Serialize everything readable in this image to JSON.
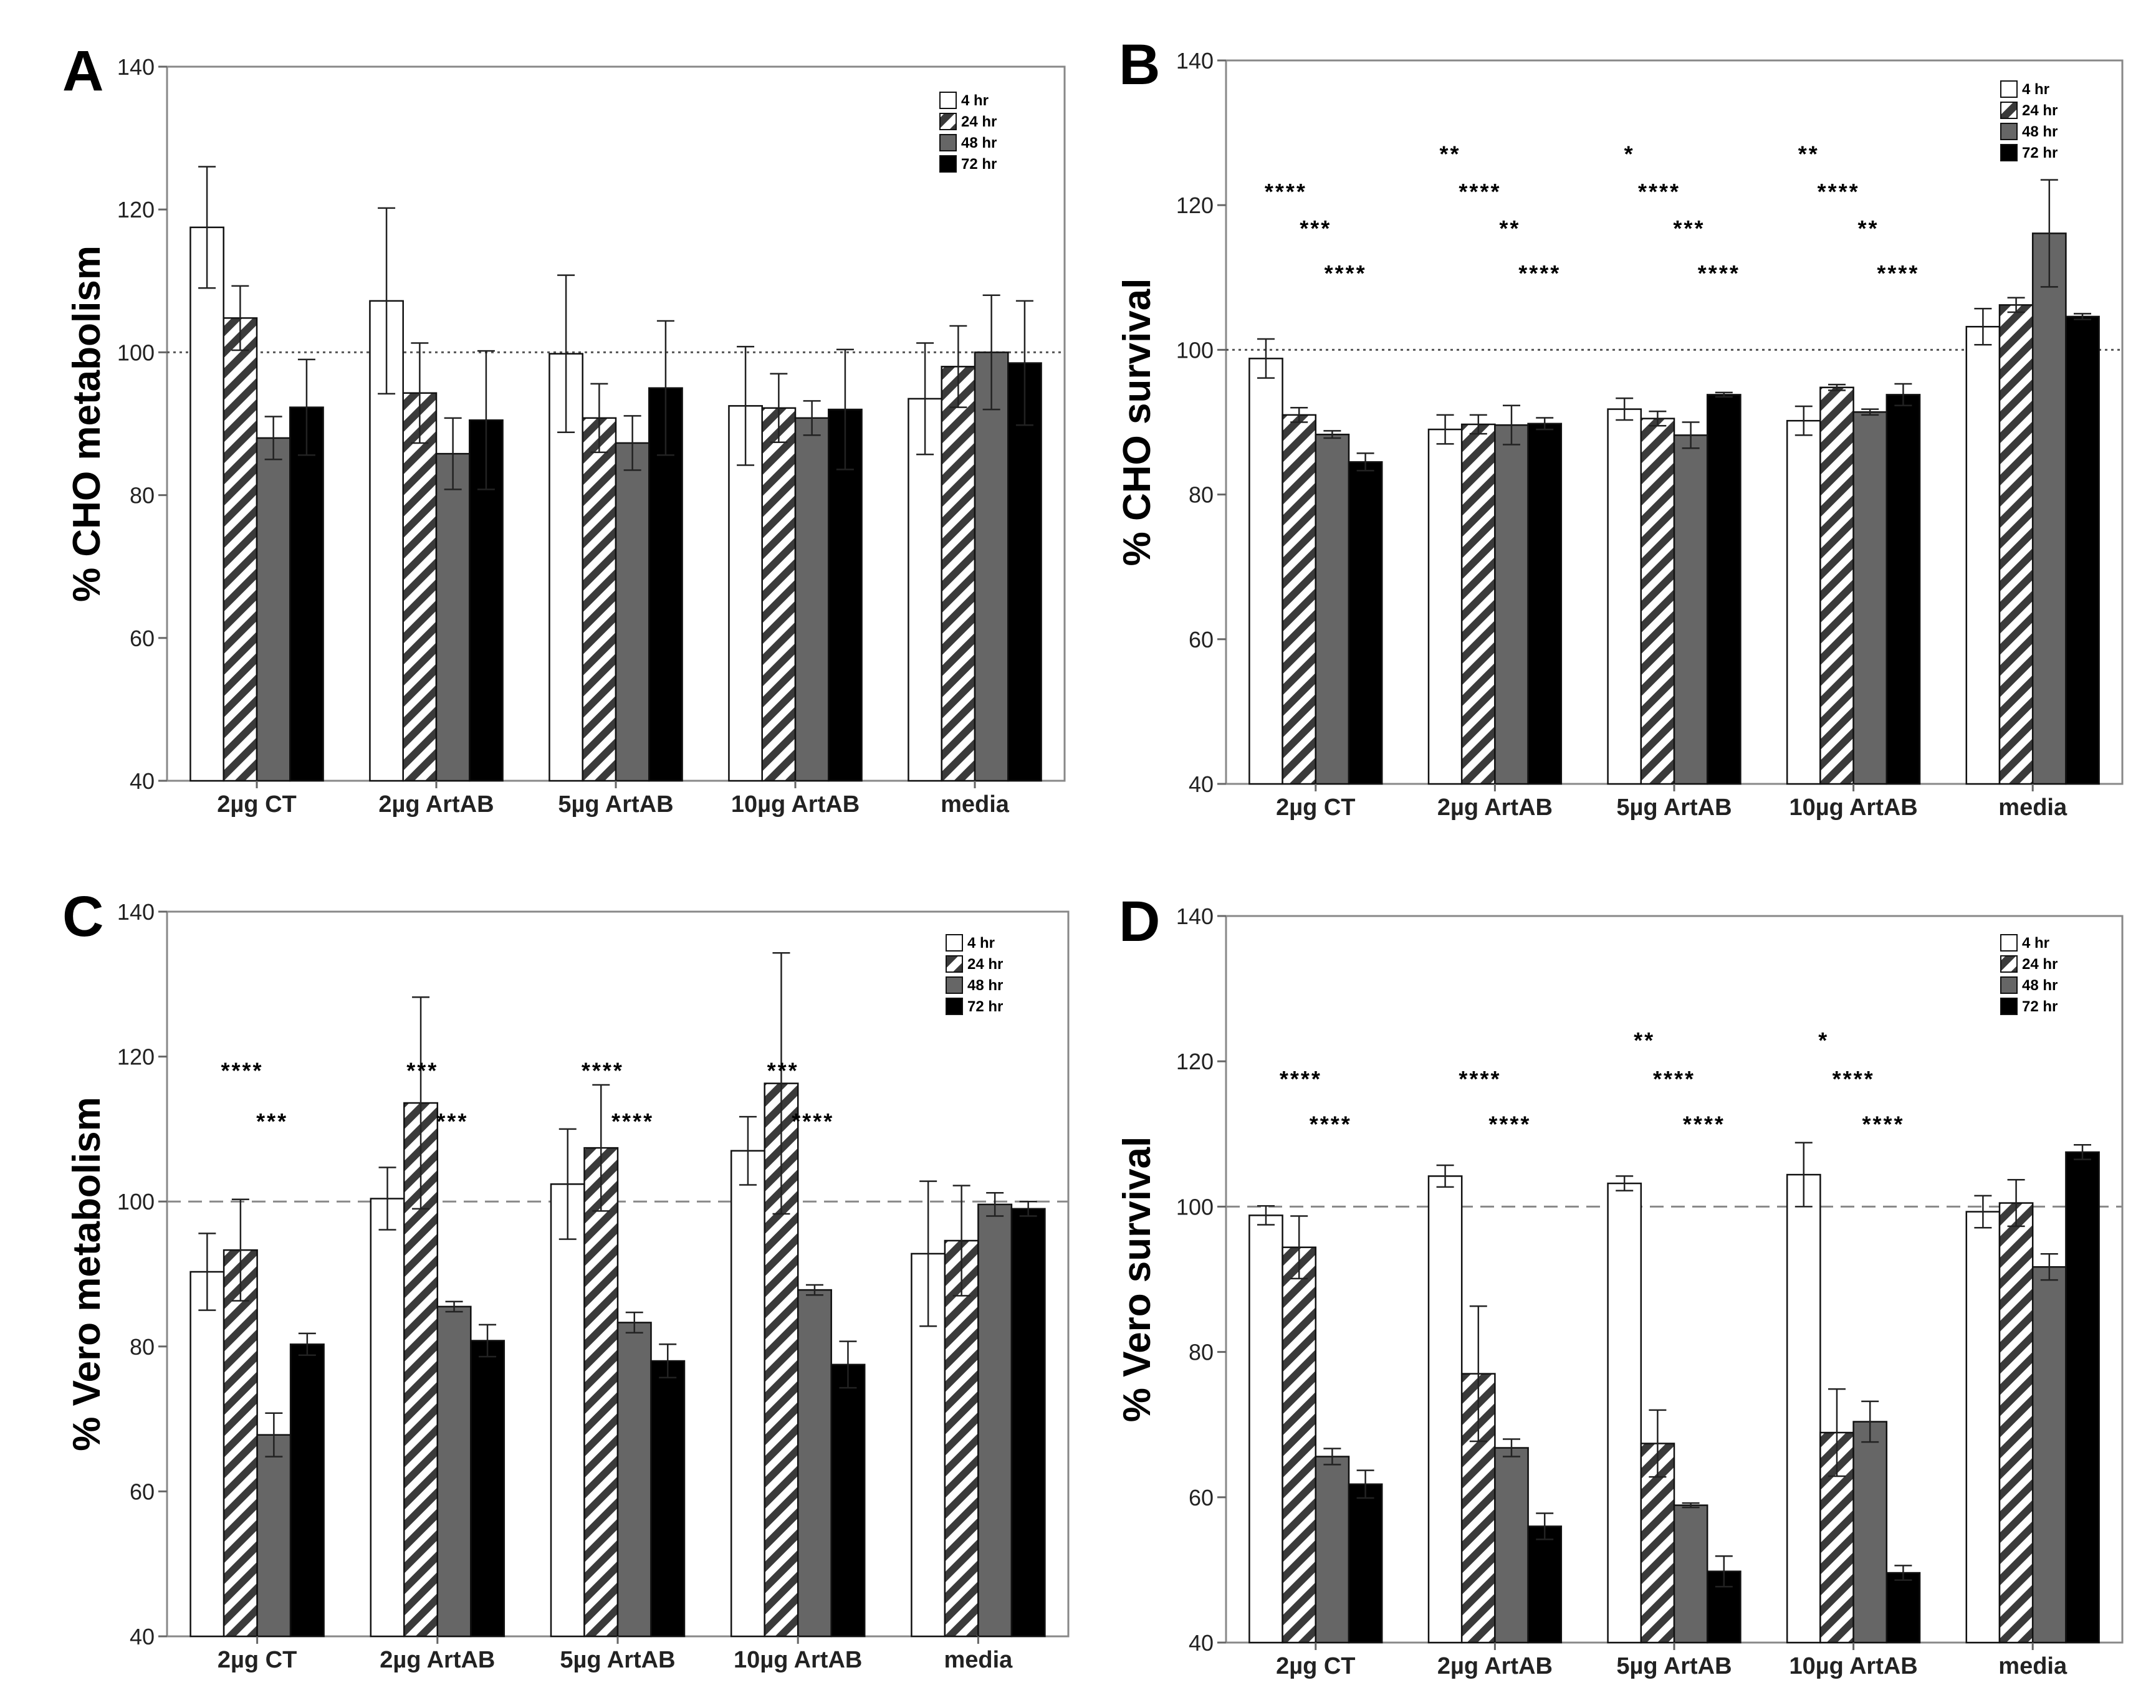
{
  "legend": [
    "4 hr",
    "24 hr",
    "48 hr",
    "72 hr"
  ],
  "colors": {
    "4 hr": "#ffffff",
    "24 hr": "hatch",
    "48 hr": "#666666",
    "72 hr": "#000000"
  },
  "chart_data": [
    {
      "panel": "A",
      "type": "bar",
      "ylabel": "% CHO metabolism",
      "ylim": [
        40,
        140
      ],
      "yticks": [
        40,
        60,
        80,
        100,
        120,
        140
      ],
      "reference_line": {
        "y": 100,
        "style": "dotted"
      },
      "categories": [
        "2µg CT",
        "2µg ArtAB",
        "5µg ArtAB",
        "10µg ArtAB",
        "media"
      ],
      "series": [
        {
          "name": "4 hr",
          "values": [
            117.5,
            107.2,
            99.8,
            92.5,
            93.5
          ],
          "errors": [
            8.5,
            13,
            11,
            8.3,
            7.8
          ]
        },
        {
          "name": "24 hr",
          "values": [
            104.8,
            94.3,
            90.8,
            92.2,
            98
          ],
          "errors": [
            4.5,
            7,
            4.8,
            4.8,
            5.7
          ]
        },
        {
          "name": "48 hr",
          "values": [
            88,
            85.8,
            87.3,
            90.8,
            100
          ],
          "errors": [
            3,
            5,
            3.8,
            2.4,
            8
          ]
        },
        {
          "name": "72 hr",
          "values": [
            92.3,
            90.5,
            95,
            92,
            98.5
          ],
          "errors": [
            6.7,
            9.7,
            9.4,
            8.4,
            8.7
          ]
        }
      ],
      "annotations": []
    },
    {
      "panel": "B",
      "type": "bar",
      "ylabel": "% CHO survival",
      "ylim": [
        40,
        140
      ],
      "yticks": [
        40,
        60,
        80,
        100,
        120,
        140
      ],
      "reference_line": {
        "y": 100,
        "style": "dotted"
      },
      "categories": [
        "2µg CT",
        "2µg ArtAB",
        "5µg ArtAB",
        "10µg ArtAB",
        "media"
      ],
      "series": [
        {
          "name": "4 hr",
          "values": [
            98.8,
            89,
            91.8,
            90.2,
            103.2
          ],
          "errors": [
            2.7,
            2,
            1.5,
            2,
            2.5
          ]
        },
        {
          "name": "24 hr",
          "values": [
            91,
            89.7,
            90.5,
            94.8,
            106.2
          ],
          "errors": [
            1,
            1.3,
            1,
            0.4,
            1
          ]
        },
        {
          "name": "48 hr",
          "values": [
            88.3,
            89.6,
            88.2,
            91.4,
            116.1
          ],
          "errors": [
            0.5,
            2.7,
            1.8,
            0.4,
            7.4
          ]
        },
        {
          "name": "72 hr",
          "values": [
            84.5,
            89.8,
            93.8,
            93.8,
            104.6
          ],
          "errors": [
            1.2,
            0.8,
            0.3,
            1.5,
            0.4
          ]
        }
      ],
      "annotations": [
        {
          "text": "****",
          "cat": 0,
          "y": 120.8
        },
        {
          "text": "***",
          "cat": 0,
          "y": 115.7
        },
        {
          "text": "****",
          "cat": 0,
          "y": 109.5
        },
        {
          "text": "**",
          "cat": 1,
          "y": 126
        },
        {
          "text": "****",
          "cat": 1,
          "y": 120.8
        },
        {
          "text": "**",
          "cat": 1,
          "y": 115.7
        },
        {
          "text": "****",
          "cat": 1,
          "y": 109.5
        },
        {
          "text": "*",
          "cat": 2,
          "y": 126
        },
        {
          "text": "****",
          "cat": 2,
          "y": 120.8
        },
        {
          "text": "***",
          "cat": 2,
          "y": 115.7
        },
        {
          "text": "****",
          "cat": 2,
          "y": 109.5
        },
        {
          "text": "**",
          "cat": 3,
          "y": 126
        },
        {
          "text": "****",
          "cat": 3,
          "y": 120.8
        },
        {
          "text": "**",
          "cat": 3,
          "y": 115.7
        },
        {
          "text": "****",
          "cat": 3,
          "y": 109.5
        }
      ]
    },
    {
      "panel": "C",
      "type": "bar",
      "ylabel": "% Vero metabolism",
      "ylim": [
        40,
        140
      ],
      "yticks": [
        40,
        60,
        80,
        100,
        120,
        140
      ],
      "reference_line": {
        "y": 100,
        "style": "dashed"
      },
      "categories": [
        "2µg CT",
        "2µg ArtAB",
        "5µg ArtAB",
        "10µg ArtAB",
        "media"
      ],
      "series": [
        {
          "name": "4 hr",
          "values": [
            90.3,
            100.4,
            102.4,
            107,
            92.8
          ],
          "errors": [
            5.3,
            4.3,
            7.6,
            4.7,
            10
          ]
        },
        {
          "name": "24 hr",
          "values": [
            93.3,
            113.6,
            107.4,
            116.3,
            94.6
          ],
          "errors": [
            7,
            14.6,
            8.7,
            18,
            7.6
          ]
        },
        {
          "name": "48 hr",
          "values": [
            67.8,
            85.5,
            83.3,
            87.8,
            99.6
          ],
          "errors": [
            3,
            0.7,
            1.4,
            0.7,
            1.6
          ]
        },
        {
          "name": "72 hr",
          "values": [
            80.3,
            80.8,
            78,
            77.5,
            99
          ],
          "errors": [
            1.5,
            2.2,
            2.3,
            3.2,
            1
          ]
        }
      ],
      "annotations": [
        {
          "text": "****",
          "cat": 0,
          "y": 117
        },
        {
          "text": "***",
          "cat": 0,
          "y": 110
        },
        {
          "text": "***",
          "cat": 1,
          "y": 117
        },
        {
          "text": "***",
          "cat": 1,
          "y": 110
        },
        {
          "text": "****",
          "cat": 2,
          "y": 117
        },
        {
          "text": "****",
          "cat": 2,
          "y": 110
        },
        {
          "text": "***",
          "cat": 3,
          "y": 117
        },
        {
          "text": "****",
          "cat": 3,
          "y": 110
        }
      ]
    },
    {
      "panel": "D",
      "type": "bar",
      "ylabel": "% Vero survival",
      "ylim": [
        40,
        140
      ],
      "yticks": [
        40,
        60,
        80,
        100,
        120,
        140
      ],
      "reference_line": {
        "y": 100,
        "style": "dashed"
      },
      "categories": [
        "2µg CT",
        "2µg ArtAB",
        "5µg ArtAB",
        "10µg ArtAB",
        "media"
      ],
      "series": [
        {
          "name": "4 hr",
          "values": [
            98.8,
            104.2,
            103.2,
            104.4,
            99.3
          ],
          "errors": [
            1.3,
            1.5,
            1,
            4.4,
            2.2
          ]
        },
        {
          "name": "24 hr",
          "values": [
            94.4,
            77,
            67.4,
            68.9,
            100.5
          ],
          "errors": [
            4.3,
            9.3,
            4.6,
            6,
            3.2
          ]
        },
        {
          "name": "48 hr",
          "values": [
            65.6,
            66.8,
            58.9,
            70.4,
            91.7
          ],
          "errors": [
            1.1,
            1.2,
            0.3,
            2.8,
            1.8
          ]
        },
        {
          "name": "72 hr",
          "values": [
            61.8,
            56,
            49.8,
            49.6,
            107.5
          ],
          "errors": [
            1.9,
            1.8,
            2.1,
            1,
            1
          ]
        }
      ],
      "annotations": [
        {
          "text": "****",
          "cat": 0,
          "y": 116.5
        },
        {
          "text": "****",
          "cat": 0,
          "y": 110.3
        },
        {
          "text": "****",
          "cat": 1,
          "y": 116.5
        },
        {
          "text": "****",
          "cat": 1,
          "y": 110.3
        },
        {
          "text": "**",
          "cat": 2,
          "y": 121.8
        },
        {
          "text": "****",
          "cat": 2,
          "y": 116.5
        },
        {
          "text": "****",
          "cat": 2,
          "y": 110.3
        },
        {
          "text": "*",
          "cat": 3,
          "y": 121.8
        },
        {
          "text": "****",
          "cat": 3,
          "y": 116.5
        },
        {
          "text": "****",
          "cat": 3,
          "y": 110.3
        }
      ]
    }
  ]
}
